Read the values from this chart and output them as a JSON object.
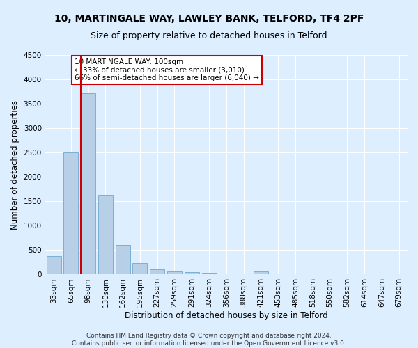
{
  "title1": "10, MARTINGALE WAY, LAWLEY BANK, TELFORD, TF4 2PF",
  "title2": "Size of property relative to detached houses in Telford",
  "xlabel": "Distribution of detached houses by size in Telford",
  "ylabel": "Number of detached properties",
  "categories": [
    "33sqm",
    "65sqm",
    "98sqm",
    "130sqm",
    "162sqm",
    "195sqm",
    "227sqm",
    "259sqm",
    "291sqm",
    "324sqm",
    "356sqm",
    "388sqm",
    "421sqm",
    "453sqm",
    "485sqm",
    "518sqm",
    "550sqm",
    "582sqm",
    "614sqm",
    "647sqm",
    "679sqm"
  ],
  "values": [
    380,
    2500,
    3720,
    1630,
    600,
    240,
    100,
    65,
    50,
    40,
    0,
    0,
    60,
    0,
    0,
    0,
    0,
    0,
    0,
    0,
    0
  ],
  "bar_color": "#b8cfe8",
  "bar_edgecolor": "#7aafd4",
  "highlight_bar_index": 2,
  "highlight_color": "#cc0000",
  "annotation_text": "10 MARTINGALE WAY: 100sqm\n← 33% of detached houses are smaller (3,010)\n66% of semi-detached houses are larger (6,040) →",
  "annotation_box_color": "#ffffff",
  "annotation_box_edgecolor": "#cc0000",
  "ylim": [
    0,
    4500
  ],
  "yticks": [
    0,
    500,
    1000,
    1500,
    2000,
    2500,
    3000,
    3500,
    4000,
    4500
  ],
  "footer": "Contains HM Land Registry data © Crown copyright and database right 2024.\nContains public sector information licensed under the Open Government Licence v3.0.",
  "background_color": "#ddeeff",
  "plot_background": "#ddeeff",
  "grid_color": "#ffffff",
  "title1_fontsize": 10,
  "title2_fontsize": 9,
  "xlabel_fontsize": 8.5,
  "ylabel_fontsize": 8.5,
  "tick_fontsize": 7.5,
  "footer_fontsize": 6.5
}
